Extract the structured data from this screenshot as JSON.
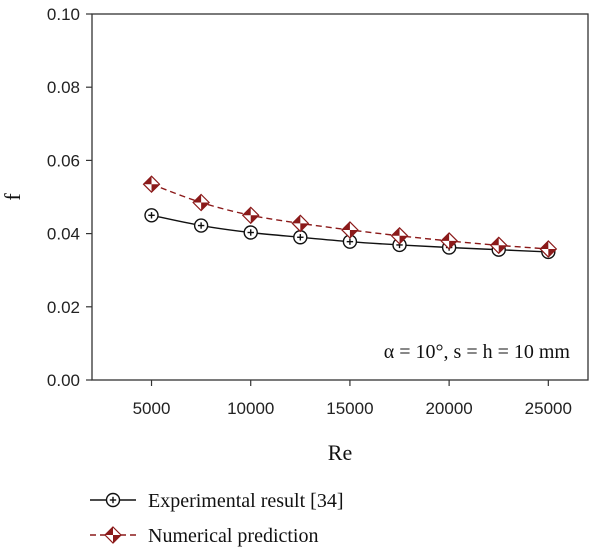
{
  "chart_data": {
    "type": "line",
    "xlabel": "Re",
    "ylabel": "f",
    "xlim": [
      2000,
      27000
    ],
    "ylim": [
      0.0,
      0.1
    ],
    "xticks": [
      5000,
      10000,
      15000,
      20000,
      25000
    ],
    "yticks": [
      0.0,
      0.02,
      0.04,
      0.06,
      0.08,
      0.1
    ],
    "annotation": "α = 10°, s = h = 10 mm",
    "grid": false,
    "legend_placement": "bottom",
    "x": [
      5000,
      7500,
      10000,
      12500,
      15000,
      17500,
      20000,
      22500,
      25000
    ],
    "series": [
      {
        "name": "Experimental result [34]",
        "color": "#111111",
        "marker": "circle-plus",
        "line_style": "solid",
        "values": [
          0.045,
          0.0422,
          0.0403,
          0.039,
          0.0378,
          0.0369,
          0.0362,
          0.0356,
          0.035
        ]
      },
      {
        "name": "Numerical prediction",
        "color": "#8b1a1a",
        "marker": "diamond-half",
        "line_style": "dashed",
        "values": [
          0.0535,
          0.0485,
          0.045,
          0.0428,
          0.041,
          0.0394,
          0.038,
          0.0368,
          0.0358
        ]
      }
    ]
  }
}
